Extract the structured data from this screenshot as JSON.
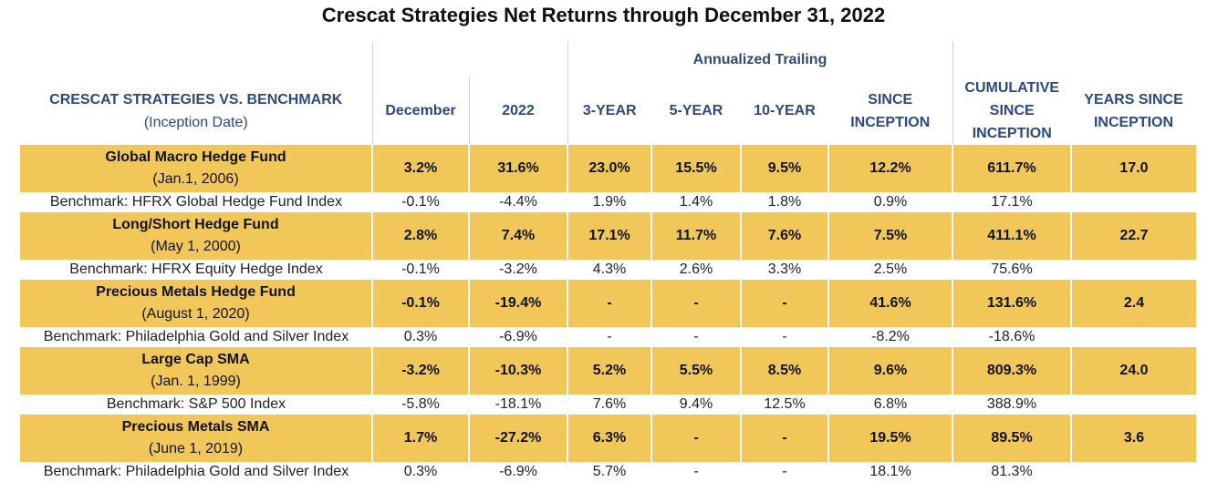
{
  "title": "Crescat Strategies Net Returns through December 31, 2022",
  "header": {
    "group_label": "Annualized Trailing",
    "strategy_col": "CRESCAT STRATEGIES VS. BENCHMARK",
    "strategy_col_sub": "(Inception Date)",
    "december": "December",
    "year": "2022",
    "three_year": "3-YEAR",
    "five_year": "5-YEAR",
    "ten_year": "10-YEAR",
    "since_inception_1": "SINCE",
    "since_inception_2": "INCEPTION",
    "cumulative_1": "CUMULATIVE",
    "cumulative_2": "SINCE",
    "cumulative_3": "INCEPTION",
    "years_since_1": "YEARS SINCE",
    "years_since_2": "INCEPTION"
  },
  "rows": [
    {
      "fund": "Global Macro Hedge Fund",
      "inception": "(Jan.1, 2006)",
      "december": "3.2%",
      "year": "31.6%",
      "y3": "23.0%",
      "y5": "15.5%",
      "y10": "9.5%",
      "since": "12.2%",
      "cumulative": "611.7%",
      "years": "17.0",
      "bench_name": "Benchmark: HFRX Global Hedge Fund Index",
      "bench_december": "-0.1%",
      "bench_year": "-4.4%",
      "bench_y3": "1.9%",
      "bench_y5": "1.4%",
      "bench_y10": "1.8%",
      "bench_since": "0.9%",
      "bench_cumulative": "17.1%"
    },
    {
      "fund": "Long/Short Hedge Fund",
      "inception": "(May 1, 2000)",
      "december": "2.8%",
      "year": "7.4%",
      "y3": "17.1%",
      "y5": "11.7%",
      "y10": "7.6%",
      "since": "7.5%",
      "cumulative": "411.1%",
      "years": "22.7",
      "bench_name": "Benchmark: HFRX Equity Hedge Index",
      "bench_december": "-0.1%",
      "bench_year": "-3.2%",
      "bench_y3": "4.3%",
      "bench_y5": "2.6%",
      "bench_y10": "3.3%",
      "bench_since": "2.5%",
      "bench_cumulative": "75.6%"
    },
    {
      "fund": "Precious Metals Hedge Fund",
      "inception": "(August 1, 2020)",
      "december": "-0.1%",
      "year": "-19.4%",
      "y3": "-",
      "y5": "-",
      "y10": "-",
      "since": "41.6%",
      "cumulative": "131.6%",
      "years": "2.4",
      "bench_name": "Benchmark: Philadelphia Gold and Silver Index",
      "bench_december": "0.3%",
      "bench_year": "-6.9%",
      "bench_y3": "-",
      "bench_y5": "-",
      "bench_y10": "-",
      "bench_since": "-8.2%",
      "bench_cumulative": "-18.6%"
    },
    {
      "fund": "Large Cap SMA",
      "inception": "(Jan. 1, 1999)",
      "december": "-3.2%",
      "year": "-10.3%",
      "y3": "5.2%",
      "y5": "5.5%",
      "y10": "8.5%",
      "since": "9.6%",
      "cumulative": "809.3%",
      "years": "24.0",
      "bench_name": "Benchmark: S&P 500 Index",
      "bench_december": "-5.8%",
      "bench_year": "-18.1%",
      "bench_y3": "7.6%",
      "bench_y5": "9.4%",
      "bench_y10": "12.5%",
      "bench_since": "6.8%",
      "bench_cumulative": "388.9%"
    },
    {
      "fund": "Precious Metals SMA",
      "inception": "(June 1, 2019)",
      "december": "1.7%",
      "year": "-27.2%",
      "y3": "6.3%",
      "y5": "-",
      "y10": "-",
      "since": "19.5%",
      "cumulative": "89.5%",
      "years": "3.6",
      "bench_name": "Benchmark: Philadelphia Gold and Silver Index",
      "bench_december": "0.3%",
      "bench_year": "-6.9%",
      "bench_y3": "5.7%",
      "bench_y5": "-",
      "bench_y10": "-",
      "bench_since": "18.1%",
      "bench_cumulative": "81.3%"
    }
  ],
  "colors": {
    "fund_row_fill": "#f2c75a",
    "header_text": "#2c4a7b"
  }
}
